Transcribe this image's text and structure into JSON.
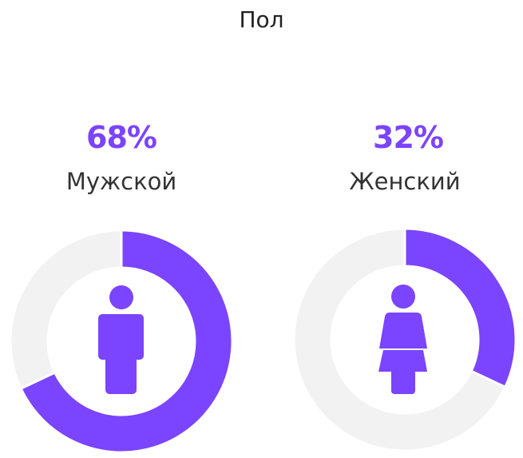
{
  "chart_data": {
    "type": "pie",
    "title": "Пол",
    "colors": {
      "accent": "#7b44ff",
      "track": "#f2f2f2"
    },
    "items": [
      {
        "label": "Мужской",
        "value": 68,
        "value_label": "68%",
        "icon": "male-person-icon"
      },
      {
        "label": "Женский",
        "value": 32,
        "value_label": "32%",
        "icon": "female-person-icon"
      }
    ]
  }
}
